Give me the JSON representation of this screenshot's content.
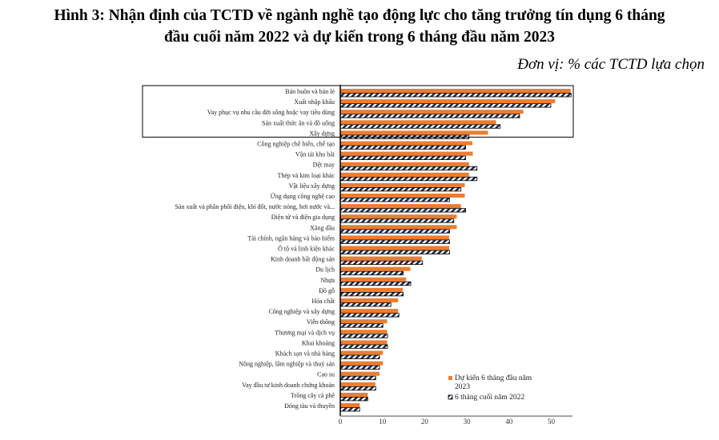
{
  "chart_data": {
    "type": "bar",
    "orientation": "horizontal",
    "title_line1": "Hình 3: Nhận định của TCTD về ngành nghề tạo động lực cho tăng trưởng tín dụng 6 tháng",
    "title_line2": "đầu cuối năm 2022 và dự kiến trong 6 tháng đầu năm 2023",
    "unit": "Đơn vị: % các TCTD lựa chọn",
    "xlim": [
      0,
      55
    ],
    "xticks": [
      "0",
      "10",
      "20",
      "30",
      "40",
      "50"
    ],
    "legend_position": "bottom-right",
    "categories": [
      "Bán buôn và bán lẻ",
      "Xuất nhập khẩu",
      "Vay phục vụ nhu cầu đời sống hoặc vay tiêu dùng",
      "Sản xuất thức ăn và đồ uống",
      "Xây dựng",
      "Công nghiệp  chế biến, chế tạo",
      "Vận tải kho bãi",
      "Dệt may",
      "Thép và kim loại khác",
      "Vật liệu xây dựng",
      "Ứng dụng công nghệ cao",
      "Sản xuất và phân phối điện, khí đốt, nước nóng, hơi nước và...",
      "Điện tử và điện gia dụng",
      "Xăng dầu",
      "Tài chính, ngân hàng và bảo hiểm",
      "Ô tô và linh kiện khác",
      "Kinh doanh bất động sản",
      "Du lịch",
      "Nhựa",
      "Đồ gỗ",
      "Hóa chất",
      "Công nghiệp  và xây dựng",
      "Viễn thông",
      "Thương mại và dịch vụ",
      "Khai khoáng",
      "Khách sạn và nhà hàng",
      "Nông nghiệp, lâm nghiệp và thuỷ sản",
      "Cao su",
      "Vay đầu tư kinh  doanh chứng khoán",
      "Trồng cây cà phê",
      "Đóng tàu và thuyền"
    ],
    "series": [
      {
        "name": "Dự kiến 6 tháng đầu năm 2023",
        "color": "#ED7D31",
        "values": [
          54.6,
          50.9,
          43.4,
          36.9,
          35.0,
          31.3,
          31.4,
          30.5,
          30.5,
          29.5,
          29.5,
          28.6,
          27.6,
          27.6,
          25.8,
          25.8,
          19.3,
          16.6,
          15.6,
          14.8,
          13.7,
          13.7,
          11.1,
          11.1,
          11.1,
          10.1,
          10.1,
          9.3,
          8.3,
          6.5,
          4.6
        ]
      },
      {
        "name": "6 tháng cuối năm 2022",
        "color": "#1F2A44",
        "values": [
          54.7,
          49.9,
          42.5,
          37.9,
          30.5,
          29.7,
          29.7,
          32.4,
          32.4,
          28.6,
          25.9,
          29.7,
          26.9,
          25.9,
          25.9,
          25.9,
          19.5,
          14.9,
          16.7,
          14.9,
          12.0,
          13.9,
          10.1,
          11.2,
          11.2,
          9.3,
          9.3,
          8.4,
          8.4,
          6.5,
          4.6
        ]
      }
    ],
    "legend": [
      "Dự kiến 6 tháng đầu năm",
      "2023",
      "6 tháng cuối năm 2022"
    ],
    "highlight_box_rows": 4
  }
}
